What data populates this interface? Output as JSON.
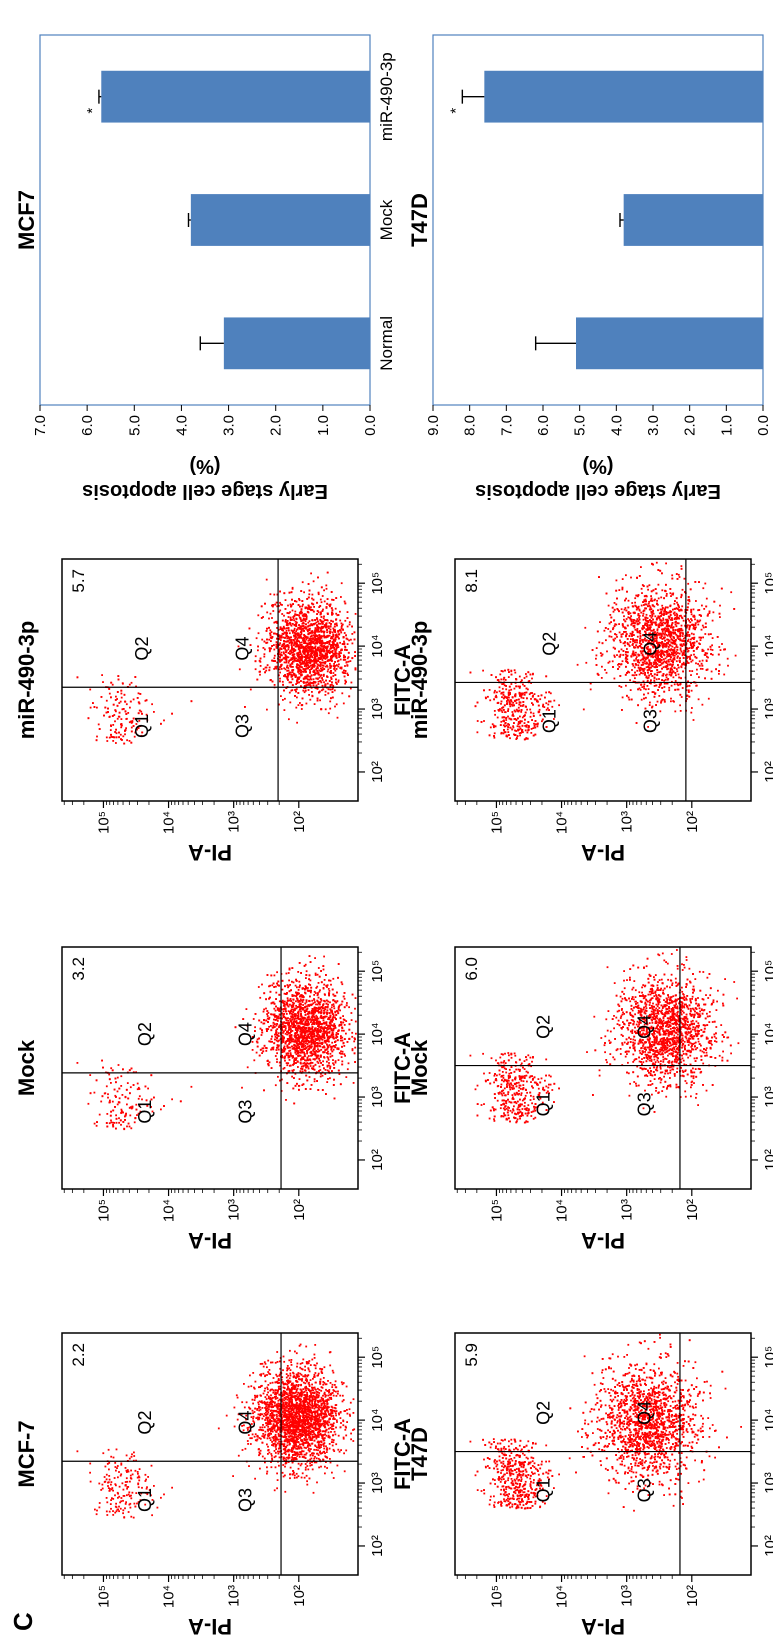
{
  "panel_label": "C",
  "chart_data": [
    {
      "type": "scatter",
      "title": "MCF-7",
      "xlabel": "FITC-A",
      "ylabel": "PI-A",
      "axis_scale": "log",
      "x_ticks": [
        "10²",
        "10³",
        "10⁴",
        "10⁵"
      ],
      "y_ticks": [
        "10²",
        "10³",
        "10⁴",
        "10⁵"
      ],
      "quadrants": [
        "Q1",
        "Q2",
        "Q3",
        "Q4"
      ],
      "value_label": "2.2",
      "color": "#ff0000"
    },
    {
      "type": "scatter",
      "title": "Mock",
      "xlabel": "FITC-A",
      "ylabel": "PI-A",
      "axis_scale": "log",
      "x_ticks": [
        "10²",
        "10³",
        "10⁴",
        "10⁵"
      ],
      "y_ticks": [
        "10²",
        "10³",
        "10⁴",
        "10⁵"
      ],
      "quadrants": [
        "Q1",
        "Q2",
        "Q3",
        "Q4"
      ],
      "value_label": "3.2",
      "color": "#ff0000"
    },
    {
      "type": "scatter",
      "title": "miR-490-3p",
      "xlabel": "FITC-A",
      "ylabel": "PI-A",
      "axis_scale": "log",
      "x_ticks": [
        "10²",
        "10³",
        "10⁴",
        "10⁵"
      ],
      "y_ticks": [
        "10²",
        "10³",
        "10⁴",
        "10⁵"
      ],
      "quadrants": [
        "Q1",
        "Q2",
        "Q3",
        "Q4"
      ],
      "value_label": "5.7",
      "color": "#ff0000"
    },
    {
      "type": "bar",
      "title": "MCF7",
      "ylabel": "Early stage cell apoptosis (%)",
      "ylabel_lines": [
        "Early stage cell apoptosis",
        "(%)"
      ],
      "categories": [
        "Normal",
        "Mock",
        "miR-490-3p"
      ],
      "values": [
        3.1,
        3.8,
        5.7
      ],
      "errors": [
        0.5,
        0.05,
        0.05
      ],
      "significance": [
        "",
        "",
        "*"
      ],
      "ylim": [
        0,
        7
      ],
      "y_ticks": [
        "0.0",
        "1.0",
        "2.0",
        "3.0",
        "4.0",
        "5.0",
        "6.0",
        "7.0"
      ],
      "color": "#4f81bd"
    },
    {
      "type": "scatter",
      "title": "T47D",
      "xlabel": "FITC-A",
      "ylabel": "PI-A",
      "axis_scale": "log",
      "x_ticks": [
        "10²",
        "10³",
        "10⁴",
        "10⁵"
      ],
      "y_ticks": [
        "10²",
        "10³",
        "10⁴",
        "10⁵"
      ],
      "quadrants": [
        "Q1",
        "Q2",
        "Q3",
        "Q4"
      ],
      "value_label": "5.9",
      "color": "#ff0000"
    },
    {
      "type": "scatter",
      "title": "Mock",
      "xlabel": "FITC-A",
      "ylabel": "PI-A",
      "axis_scale": "log",
      "x_ticks": [
        "10²",
        "10³",
        "10⁴",
        "10⁵"
      ],
      "y_ticks": [
        "10²",
        "10³",
        "10⁴",
        "10⁵"
      ],
      "quadrants": [
        "Q1",
        "Q2",
        "Q3",
        "Q4"
      ],
      "value_label": "6.0",
      "color": "#ff0000"
    },
    {
      "type": "scatter",
      "title": "miR-490-3p",
      "xlabel": "FITC-A",
      "ylabel": "PI-A",
      "axis_scale": "log",
      "x_ticks": [
        "10²",
        "10³",
        "10⁴",
        "10⁵"
      ],
      "y_ticks": [
        "10²",
        "10³",
        "10⁴",
        "10⁵"
      ],
      "quadrants": [
        "Q1",
        "Q2",
        "Q3",
        "Q4"
      ],
      "value_label": "8.1",
      "color": "#ff0000"
    },
    {
      "type": "bar",
      "title": "T47D",
      "ylabel": "Early stage cell apoptosis (%)",
      "ylabel_lines": [
        "Early stage cell apoptosis",
        "(%)"
      ],
      "categories": [
        "Normal",
        "Mock",
        "miR-490-3p"
      ],
      "values": [
        5.1,
        3.8,
        7.6
      ],
      "errors": [
        1.1,
        0.1,
        0.6
      ],
      "significance": [
        "",
        "",
        "*"
      ],
      "ylim": [
        0,
        9
      ],
      "y_ticks": [
        "0.0",
        "1.0",
        "2.0",
        "3.0",
        "4.0",
        "5.0",
        "6.0",
        "7.0",
        "8.0",
        "9.0"
      ],
      "color": "#4f81bd"
    }
  ]
}
